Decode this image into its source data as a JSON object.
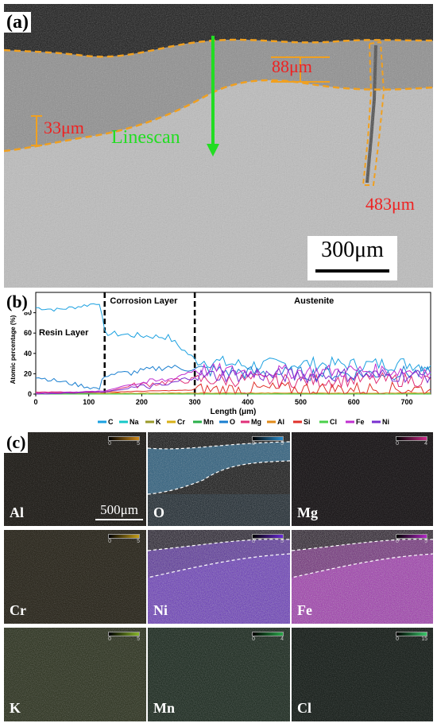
{
  "panel_a": {
    "label": "(a)",
    "thickness_labels": [
      "88μm",
      "33μm",
      "483μm"
    ],
    "linescan_label": "Linescan",
    "scalebar": "300μm"
  },
  "panel_b": {
    "label": "(b)",
    "regions": [
      "Resin Layer",
      "Corrosion Layer",
      "Austenite"
    ]
  },
  "panel_c": {
    "label": "(c)",
    "scalebar": "500μm",
    "maps": [
      {
        "element": "Al",
        "cb_min": "0",
        "cb_max": "5",
        "color": "#d08a1a"
      },
      {
        "element": "O",
        "cb_min": "0",
        "cb_max": "5",
        "color": "#2a8fd0"
      },
      {
        "element": "Mg",
        "cb_min": "0",
        "cb_max": "4",
        "color": "#d02a8a"
      },
      {
        "element": "Cr",
        "cb_min": "0",
        "cb_max": "5",
        "color": "#c8a018"
      },
      {
        "element": "Ni",
        "cb_min": "0",
        "cb_max": "5",
        "color": "#6a2ad8"
      },
      {
        "element": "Fe",
        "cb_min": "0",
        "cb_max": "5",
        "color": "#b428c8"
      },
      {
        "element": "K",
        "cb_min": "0",
        "cb_max": "5",
        "color": "#8ab82a"
      },
      {
        "element": "Mn",
        "cb_min": "0",
        "cb_max": "4",
        "color": "#2aa84a"
      },
      {
        "element": "Cl",
        "cb_min": "0",
        "cb_max": "15",
        "color": "#3ac86a"
      }
    ]
  },
  "chart_data": {
    "type": "line",
    "title": "",
    "xlabel": "Length (μm)",
    "ylabel": "Atomic percentage (%)",
    "xlim": [
      0,
      745
    ],
    "ylim": [
      0,
      100
    ],
    "xticks": [
      "0",
      "100",
      "200",
      "300",
      "400",
      "500",
      "600",
      "700"
    ],
    "yticks": [
      "0",
      "20",
      "40",
      "60",
      "80"
    ],
    "boundaries_x": [
      130,
      300
    ],
    "legend_position": "bottom",
    "series": [
      {
        "name": "C",
        "color": "#1aa0e0",
        "x": [
          0,
          40,
          80,
          120,
          130,
          180,
          250,
          300,
          400,
          500,
          600,
          700,
          745
        ],
        "y": [
          85,
          83,
          86,
          90,
          60,
          58,
          56,
          34,
          28,
          30,
          29,
          30,
          28
        ]
      },
      {
        "name": "Na",
        "color": "#17c8c8",
        "x": [
          0,
          745
        ],
        "y": [
          0,
          0
        ]
      },
      {
        "name": "K",
        "color": "#9a9a2a",
        "x": [
          0,
          745
        ],
        "y": [
          0,
          0
        ]
      },
      {
        "name": "Cr",
        "color": "#d8b018",
        "x": [
          0,
          745
        ],
        "y": [
          0,
          0
        ]
      },
      {
        "name": "Mn",
        "color": "#2ab04a",
        "x": [
          0,
          745
        ],
        "y": [
          0,
          0
        ]
      },
      {
        "name": "O",
        "color": "#1a7fd0",
        "x": [
          0,
          40,
          80,
          120,
          130,
          180,
          250,
          300,
          400,
          500,
          600,
          700,
          745
        ],
        "y": [
          17,
          13,
          9,
          5,
          19,
          21,
          27,
          24,
          21,
          20,
          20,
          21,
          20
        ]
      },
      {
        "name": "Mg",
        "color": "#e0307a",
        "x": [
          0,
          130,
          180,
          250,
          300,
          400,
          500,
          600,
          745
        ],
        "y": [
          2,
          2,
          8,
          12,
          14,
          14,
          13,
          14,
          14
        ]
      },
      {
        "name": "Al",
        "color": "#e08a1a",
        "x": [
          0,
          745
        ],
        "y": [
          1,
          1
        ]
      },
      {
        "name": "Si",
        "color": "#e0302a",
        "x": [
          0,
          130,
          300,
          400,
          500,
          600,
          745
        ],
        "y": [
          1,
          2,
          4,
          5,
          5,
          5,
          5
        ]
      },
      {
        "name": "Cl",
        "color": "#4ad04a",
        "x": [
          0,
          745
        ],
        "y": [
          0,
          0
        ]
      },
      {
        "name": "Fe",
        "color": "#c030d0",
        "x": [
          0,
          130,
          180,
          250,
          300,
          400,
          500,
          600,
          700,
          745
        ],
        "y": [
          1,
          3,
          10,
          14,
          24,
          22,
          22,
          23,
          23,
          22
        ]
      },
      {
        "name": "Ni",
        "color": "#7a30d0",
        "x": [
          0,
          130,
          180,
          250,
          300,
          400,
          500,
          600,
          745
        ],
        "y": [
          0,
          2,
          6,
          9,
          18,
          19,
          18,
          19,
          18
        ]
      }
    ]
  }
}
